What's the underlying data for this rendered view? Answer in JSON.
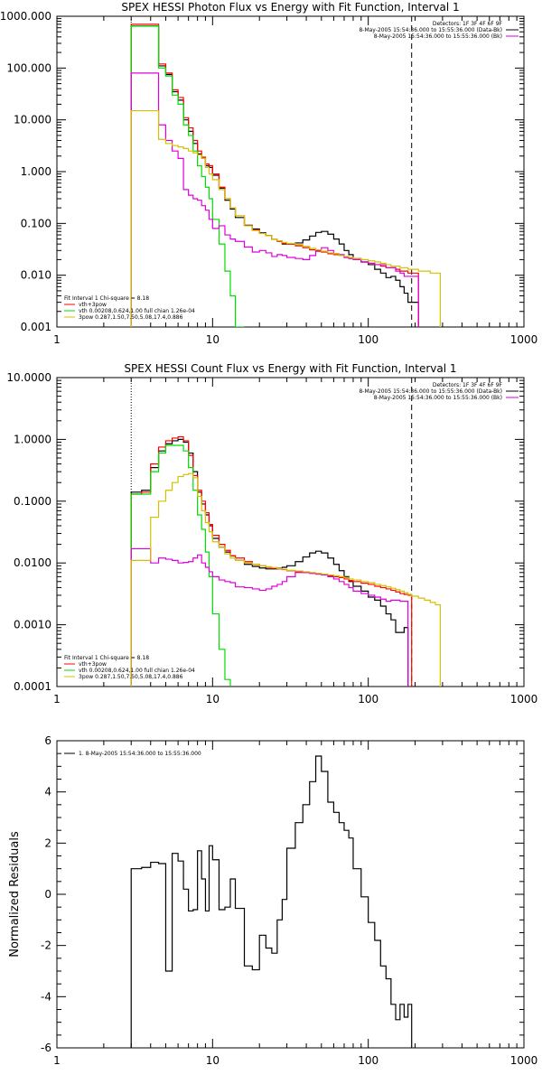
{
  "colors": {
    "red": "#ff0000",
    "black": "#000000",
    "green": "#00dd00",
    "magenta": "#dd00dd",
    "yellow": "#d4c000"
  },
  "chart_data": [
    {
      "type": "line",
      "title": "SPEX HESSI Photon Flux vs Energy with Fit Function, Interval 1",
      "xscale": "log",
      "yscale": "log",
      "xlim": [
        1,
        1000
      ],
      "ylim": [
        0.001,
        1000
      ],
      "xticks": [
        "1",
        "10",
        "100",
        "1000"
      ],
      "yticks": [
        "0.001",
        "0.010",
        "0.100",
        "1.000",
        "10.000",
        "100.000",
        "1000.000"
      ],
      "vlines": [
        {
          "x": 3,
          "style": "dotted"
        },
        {
          "x": 190,
          "style": "dashed"
        }
      ],
      "legend_right": [
        "Detectors: 1F 3F 4F 6F 9F",
        "8-May-2005 15:54:36.000 to 15:55:36.000 (Data-Bk)",
        "8-May-2005 15:54:36.000 to 15:55:36.000 (Bk)"
      ],
      "legend_left": [
        "Fit Interval  1    Chi-square = 8.18",
        "vth+3pow",
        "vth 0.00208,0.624,1.00  full chian 1.26e-04",
        "3pow 0.287,1.50,7.50,5.08,17.4,0.886"
      ],
      "edges": [
        3,
        3.5,
        4,
        4.5,
        5,
        5.5,
        6,
        6.5,
        7,
        7.5,
        8,
        8.5,
        9,
        9.5,
        10,
        11,
        12,
        13,
        14,
        16,
        18,
        20,
        22,
        24,
        26,
        28,
        30,
        34,
        38,
        42,
        46,
        50,
        55,
        60,
        65,
        70,
        75,
        80,
        90,
        100,
        110,
        120,
        130,
        140,
        150,
        160,
        170,
        180,
        190,
        210,
        230,
        250,
        270,
        290
      ],
      "series": [
        {
          "name": "Data-Bk",
          "color": "black",
          "values": [
            650,
            650,
            650,
            110,
            75,
            35,
            24,
            10,
            6,
            3.5,
            2.2,
            1.8,
            1.3,
            1.2,
            0.85,
            0.48,
            0.28,
            0.19,
            0.13,
            0.092,
            0.078,
            0.066,
            0.058,
            0.05,
            0.046,
            0.04,
            0.04,
            0.042,
            0.048,
            0.057,
            0.067,
            0.07,
            0.062,
            0.05,
            0.04,
            0.03,
            0.025,
            0.021,
            0.018,
            0.016,
            0.013,
            0.011,
            0.009,
            0.0095,
            0.008,
            0.006,
            0.0045,
            0.003,
            0.003
          ]
        },
        {
          "name": "vth+3pow",
          "color": "red",
          "values": [
            700,
            700,
            700,
            120,
            80,
            38,
            27,
            11,
            7,
            4,
            2.5,
            1.9,
            1.4,
            1.3,
            0.9,
            0.5,
            0.3,
            0.2,
            0.14,
            0.09,
            0.075,
            0.064,
            0.058,
            0.05,
            0.045,
            0.041,
            0.04,
            0.037,
            0.034,
            0.031,
            0.029,
            0.028,
            0.026,
            0.025,
            0.024,
            0.022,
            0.021,
            0.02,
            0.018,
            0.017,
            0.016,
            0.015,
            0.014,
            0.014,
            0.013,
            0.012,
            0.012,
            0.011,
            0.011
          ]
        },
        {
          "name": "vth",
          "color": "green",
          "values": [
            650,
            650,
            650,
            100,
            70,
            30,
            20,
            8,
            5,
            2.5,
            1.3,
            0.8,
            0.5,
            0.3,
            0.12,
            0.04,
            0.012,
            0.004,
            0.001
          ]
        },
        {
          "name": "Bk",
          "color": "magenta",
          "values": [
            80,
            80,
            80,
            8,
            4,
            2.5,
            1.8,
            0.45,
            0.35,
            0.3,
            0.28,
            0.22,
            0.18,
            0.12,
            0.08,
            0.09,
            0.06,
            0.05,
            0.045,
            0.035,
            0.028,
            0.03,
            0.027,
            0.023,
            0.025,
            0.024,
            0.022,
            0.021,
            0.02,
            0.024,
            0.03,
            0.034,
            0.03,
            0.026,
            0.025,
            0.022,
            0.021,
            0.02,
            0.018,
            0.017,
            0.016,
            0.016,
            0.014,
            0.014,
            0.012,
            0.011,
            0.0095,
            0.0095,
            0.0095
          ]
        },
        {
          "name": "3pow",
          "color": "yellow",
          "values": [
            15,
            15,
            15,
            4.2,
            3.5,
            3.2,
            3.0,
            2.8,
            2.5,
            2.3,
            2.1,
            1.8,
            1.2,
            0.9,
            0.7,
            0.45,
            0.3,
            0.2,
            0.14,
            0.09,
            0.073,
            0.064,
            0.058,
            0.05,
            0.046,
            0.043,
            0.041,
            0.039,
            0.036,
            0.033,
            0.031,
            0.029,
            0.027,
            0.026,
            0.024,
            0.023,
            0.022,
            0.021,
            0.02,
            0.019,
            0.018,
            0.017,
            0.016,
            0.015,
            0.015,
            0.014,
            0.014,
            0.013,
            0.013,
            0.012,
            0.012,
            0.011,
            0.011
          ]
        }
      ]
    },
    {
      "type": "line",
      "title": "SPEX HESSI Count Flux vs Energy with Fit Function, Interval 1",
      "xscale": "log",
      "yscale": "log",
      "xlim": [
        1,
        1000
      ],
      "ylim": [
        0.0001,
        10
      ],
      "xticks": [
        "1",
        "10",
        "100",
        "1000"
      ],
      "yticks": [
        "0.0001",
        "0.0010",
        "0.0100",
        "0.1000",
        "1.0000",
        "10.0000"
      ],
      "vlines": [
        {
          "x": 3,
          "style": "dotted"
        },
        {
          "x": 190,
          "style": "dashed"
        }
      ],
      "legend_right": [
        "Detectors: 1F 3F 4F 6F 9F",
        "8-May-2005 15:54:36.000 to 15:55:36.000 (Data-Bk)",
        "8-May-2005 15:54:36.000 to 15:55:36.000 (Bk)"
      ],
      "legend_left": [
        "Fit Interval  1    Chi-square = 8.18",
        "vth+3pow",
        "vth 0.00208,0.624,1.00  full chian 1.26e-04",
        "3pow 0.287,1.50,7.50,5.08,17.4,0.886"
      ],
      "edges": [
        3,
        3.5,
        4,
        4.5,
        5,
        5.5,
        6,
        6.5,
        7,
        7.5,
        8,
        8.5,
        9,
        9.5,
        10,
        11,
        12,
        13,
        14,
        16,
        18,
        20,
        22,
        24,
        26,
        28,
        30,
        34,
        38,
        42,
        46,
        50,
        55,
        60,
        65,
        70,
        75,
        80,
        90,
        100,
        110,
        120,
        130,
        140,
        150,
        160,
        170,
        180,
        190,
        210,
        230,
        250,
        270,
        290
      ],
      "series": [
        {
          "name": "Data-Bk",
          "color": "black",
          "values": [
            0.14,
            0.15,
            0.35,
            0.65,
            0.85,
            0.95,
            1.0,
            0.9,
            0.6,
            0.3,
            0.14,
            0.09,
            0.06,
            0.04,
            0.025,
            0.018,
            0.015,
            0.013,
            0.011,
            0.0095,
            0.0088,
            0.0083,
            0.008,
            0.008,
            0.0082,
            0.0085,
            0.009,
            0.0105,
            0.0125,
            0.0145,
            0.0155,
            0.0145,
            0.012,
            0.0095,
            0.0075,
            0.006,
            0.005,
            0.0042,
            0.0035,
            0.0028,
            0.0025,
            0.002,
            0.0015,
            0.0012,
            0.00075,
            0.00075,
            0.0009
          ]
        },
        {
          "name": "vth+3pow",
          "color": "red",
          "values": [
            0.13,
            0.14,
            0.4,
            0.75,
            0.95,
            1.05,
            1.1,
            0.95,
            0.55,
            0.26,
            0.15,
            0.1,
            0.065,
            0.042,
            0.028,
            0.02,
            0.016,
            0.013,
            0.012,
            0.0105,
            0.0095,
            0.009,
            0.0085,
            0.0082,
            0.008,
            0.0078,
            0.0075,
            0.0072,
            0.007,
            0.0068,
            0.0066,
            0.0064,
            0.0062,
            0.006,
            0.0058,
            0.0055,
            0.0052,
            0.005,
            0.0047,
            0.0045,
            0.0042,
            0.004,
            0.0038,
            0.0036,
            0.0034,
            0.0032,
            0.0031,
            0.003
          ]
        },
        {
          "name": "vth",
          "color": "green",
          "values": [
            0.13,
            0.13,
            0.3,
            0.6,
            0.8,
            0.8,
            0.8,
            0.65,
            0.35,
            0.15,
            0.06,
            0.035,
            0.015,
            0.006,
            0.0015,
            0.0004,
            0.00013
          ]
        },
        {
          "name": "Bk",
          "color": "magenta",
          "values": [
            0.017,
            0.017,
            0.01,
            0.012,
            0.0115,
            0.011,
            0.01,
            0.0102,
            0.0105,
            0.012,
            0.0135,
            0.01,
            0.0085,
            0.0072,
            0.006,
            0.0053,
            0.005,
            0.0048,
            0.0041,
            0.004,
            0.0038,
            0.0036,
            0.0038,
            0.0042,
            0.0045,
            0.005,
            0.006,
            0.007,
            0.007,
            0.0068,
            0.0066,
            0.0064,
            0.006,
            0.0055,
            0.005,
            0.0045,
            0.004,
            0.0035,
            0.0032,
            0.003,
            0.0028,
            0.0026,
            0.0024,
            0.0025,
            0.0025,
            0.0024,
            0.0024
          ]
        },
        {
          "name": "3pow",
          "color": "yellow",
          "values": [
            0.011,
            0.011,
            0.055,
            0.1,
            0.15,
            0.2,
            0.25,
            0.27,
            0.28,
            0.24,
            0.12,
            0.07,
            0.045,
            0.032,
            0.022,
            0.018,
            0.014,
            0.012,
            0.011,
            0.01,
            0.0095,
            0.009,
            0.0087,
            0.0084,
            0.0081,
            0.0079,
            0.0076,
            0.0074,
            0.0072,
            0.007,
            0.0068,
            0.0066,
            0.0064,
            0.0062,
            0.006,
            0.0058,
            0.0055,
            0.0053,
            0.005,
            0.0048,
            0.0045,
            0.0043,
            0.0041,
            0.0039,
            0.0037,
            0.0035,
            0.0033,
            0.0031,
            0.0029,
            0.0027,
            0.0025,
            0.0023,
            0.0021
          ]
        }
      ]
    },
    {
      "type": "line",
      "title": "",
      "xscale": "log",
      "yscale": "linear",
      "xlim": [
        1,
        1000
      ],
      "ylim": [
        -6,
        6
      ],
      "xticks": [
        "1",
        "10",
        "100",
        "1000"
      ],
      "yticks": [
        "-6",
        "-4",
        "-2",
        "0",
        "2",
        "4",
        "6"
      ],
      "ylabel": "Normalized Residuals",
      "legend_left": [
        "1.  8-May-2005 15:54:36.000 to 15:55:36.000"
      ],
      "edges": [
        3,
        3.5,
        4,
        4.5,
        5,
        5.5,
        6,
        6.5,
        7,
        7.5,
        8,
        8.5,
        9,
        9.5,
        10,
        11,
        12,
        13,
        14,
        16,
        18,
        20,
        22,
        24,
        26,
        28,
        30,
        34,
        38,
        42,
        46,
        50,
        55,
        60,
        65,
        70,
        75,
        80,
        90,
        100,
        110,
        120,
        130,
        140,
        150,
        160,
        170,
        180,
        190
      ],
      "series": [
        {
          "name": "",
          "color": "black",
          "values": [
            1.0,
            1.05,
            1.25,
            1.2,
            -3.0,
            1.6,
            1.3,
            0.2,
            -0.65,
            -0.6,
            1.7,
            0.6,
            -0.65,
            1.9,
            1.35,
            -0.6,
            -0.5,
            0.6,
            -0.55,
            -2.8,
            -2.95,
            -1.6,
            -2.1,
            -2.3,
            -1.0,
            -0.2,
            1.8,
            2.8,
            3.5,
            4.4,
            5.4,
            4.8,
            3.6,
            3.2,
            2.8,
            2.5,
            2.2,
            1.0,
            -0.1,
            -1.1,
            -1.8,
            -2.8,
            -3.3,
            -4.3,
            -4.9,
            -4.3,
            -4.8,
            -4.3
          ]
        }
      ]
    }
  ]
}
